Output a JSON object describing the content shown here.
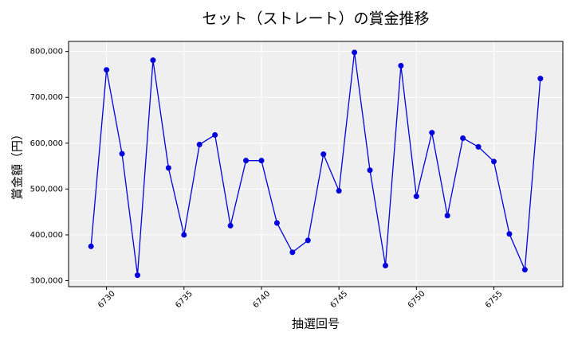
{
  "chart_data": {
    "type": "line",
    "title": "セット（ストレート）の賞金推移",
    "x_label": "抽選回号",
    "y_label": "賞金額（円）",
    "x": [
      6729,
      6730,
      6731,
      6732,
      6733,
      6734,
      6735,
      6736,
      6737,
      6738,
      6739,
      6740,
      6741,
      6742,
      6743,
      6744,
      6745,
      6746,
      6747,
      6748,
      6749,
      6750,
      6751,
      6752,
      6753,
      6754,
      6755,
      6756,
      6757,
      6758
    ],
    "series": [
      {
        "name": "賞金",
        "color": "#0000dd",
        "values": [
          375000,
          760000,
          577000,
          312000,
          781000,
          546000,
          400000,
          597000,
          618000,
          420000,
          562000,
          562000,
          426000,
          362000,
          388000,
          576000,
          496000,
          798000,
          541000,
          333000,
          769000,
          484000,
          623000,
          442000,
          611000,
          592000,
          560000,
          402000,
          324000,
          741000
        ]
      }
    ],
    "xlim": [
      6727.55,
      6759.45
    ],
    "xticks": [
      6730,
      6735,
      6740,
      6745,
      6750,
      6755
    ],
    "ylim": [
      287000,
      822000
    ],
    "yticks": [
      {
        "value": 300000,
        "label": "300,000"
      },
      {
        "value": 400000,
        "label": "400,000"
      },
      {
        "value": 500000,
        "label": "500,000"
      },
      {
        "value": 600000,
        "label": "600,000"
      },
      {
        "value": 700000,
        "label": "700,000"
      },
      {
        "value": 800000,
        "label": "800,000"
      }
    ],
    "grid": true
  }
}
